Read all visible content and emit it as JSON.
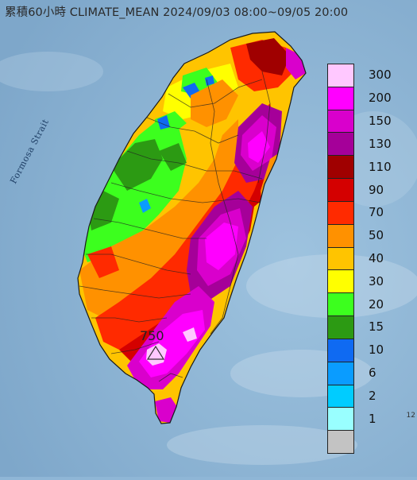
{
  "title": "累積60小時 CLIMATE_MEAN 2024/09/03 08:00~09/05 20:00",
  "strait_label": "Formosa Strait",
  "max_value_label": "750",
  "edge_tick": "12",
  "legend": {
    "bins": [
      {
        "label": "300",
        "color": "#ffc8ff"
      },
      {
        "label": "200",
        "color": "#ff00ff"
      },
      {
        "label": "150",
        "color": "#d900cc"
      },
      {
        "label": "130",
        "color": "#a50099"
      },
      {
        "label": "110",
        "color": "#a00000"
      },
      {
        "label": "90",
        "color": "#d40000"
      },
      {
        "label": "70",
        "color": "#ff2a00"
      },
      {
        "label": "50",
        "color": "#ff9100"
      },
      {
        "label": "40",
        "color": "#ffc400"
      },
      {
        "label": "30",
        "color": "#ffff00"
      },
      {
        "label": "20",
        "color": "#3cff1e"
      },
      {
        "label": "15",
        "color": "#2c9a13"
      },
      {
        "label": "10",
        "color": "#0f6af2"
      },
      {
        "label": "6",
        "color": "#0a9cff"
      },
      {
        "label": "2",
        "color": "#00ccff"
      },
      {
        "label": "1",
        "color": "#99ffff"
      },
      {
        "label": "",
        "color": "#c3c3c3"
      }
    ]
  },
  "colors": {
    "sea": "#8fb6d6",
    "boundary": "#222222"
  }
}
